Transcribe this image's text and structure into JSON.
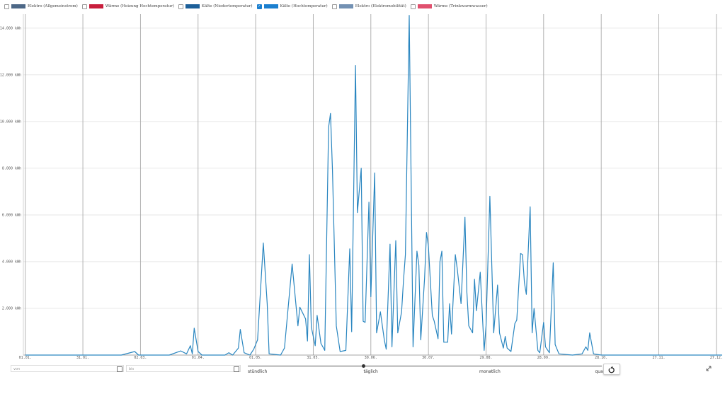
{
  "legend": [
    {
      "label": "Elektro (Allgemeinstrom)",
      "color": "#4d6887",
      "checked": false
    },
    {
      "label": "Wärme (Heizung Hochtemperatur)",
      "color": "#c81e3c",
      "checked": false
    },
    {
      "label": "Kälte (Niedertemperatur)",
      "color": "#1c5f99",
      "checked": false
    },
    {
      "label": "Kälte (Hochtemperatur)",
      "color": "#1b7fcf",
      "checked": true
    },
    {
      "label": "Elektro (Elektromobilität)",
      "color": "#7391b3",
      "checked": false
    },
    {
      "label": "Wärme (Trinkwarmwasser)",
      "color": "#e0506e",
      "checked": false
    }
  ],
  "chart_data": {
    "type": "line",
    "color": "#2a86c0",
    "grid": true,
    "xlim": [
      -1,
      363
    ],
    "ylim": [
      0,
      14600
    ],
    "xticks": [
      {
        "value": 0,
        "label": "01.01."
      },
      {
        "value": 30,
        "label": "31.01."
      },
      {
        "value": 60,
        "label": "02.03."
      },
      {
        "value": 90,
        "label": "01.04."
      },
      {
        "value": 120,
        "label": "01.05."
      },
      {
        "value": 150,
        "label": "31.05."
      },
      {
        "value": 180,
        "label": "30.06."
      },
      {
        "value": 210,
        "label": "30.07."
      },
      {
        "value": 240,
        "label": "29.08."
      },
      {
        "value": 270,
        "label": "28.09."
      },
      {
        "value": 300,
        "label": "28.10."
      },
      {
        "value": 330,
        "label": "27.11."
      },
      {
        "value": 360,
        "label": "27.12."
      }
    ],
    "yticks": [
      {
        "value": 2000,
        "label": "2.000 kWh"
      },
      {
        "value": 4000,
        "label": "4.000 kWh"
      },
      {
        "value": 6000,
        "label": "6.000 kWh"
      },
      {
        "value": 8000,
        "label": "8.000 kWh"
      },
      {
        "value": 10000,
        "label": "10.000 kWh"
      },
      {
        "value": 12000,
        "label": "12.000 kWh"
      },
      {
        "value": 14000,
        "label": "14.000 kWh"
      }
    ],
    "x": [
      0,
      20,
      50,
      57,
      59,
      75,
      81,
      84,
      86,
      87,
      88,
      90,
      92,
      104,
      106,
      108,
      111,
      112,
      114,
      117,
      119,
      121,
      124,
      126,
      127,
      133,
      135,
      139,
      142,
      143,
      146,
      147,
      148,
      149,
      151,
      152,
      154,
      156,
      158,
      159,
      160,
      162,
      164,
      167,
      169,
      170,
      172,
      173,
      175,
      176,
      177,
      179,
      180,
      182,
      183,
      185,
      187,
      188,
      190,
      191,
      193,
      194,
      196,
      197,
      198,
      200,
      202,
      204,
      205,
      206,
      208,
      209,
      210,
      212,
      213,
      215,
      216,
      217,
      218,
      220,
      221,
      222,
      224,
      225,
      227,
      229,
      230,
      231,
      233,
      234,
      235,
      237,
      239,
      240,
      242,
      244,
      246,
      247,
      249,
      250,
      251,
      253,
      255,
      256,
      258,
      259,
      260,
      261,
      263,
      264,
      265,
      267,
      268,
      270,
      271,
      273,
      275,
      276,
      278,
      285,
      290,
      292,
      293,
      294,
      296,
      300,
      363
    ],
    "values": [
      0,
      0,
      0,
      150,
      0,
      0,
      180,
      50,
      400,
      50,
      1150,
      150,
      0,
      0,
      100,
      0,
      300,
      1100,
      100,
      0,
      250,
      650,
      4800,
      2200,
      50,
      0,
      300,
      3900,
      1250,
      2050,
      1550,
      600,
      4300,
      1200,
      400,
      1700,
      500,
      200,
      9750,
      10350,
      7900,
      1250,
      150,
      200,
      4550,
      1000,
      12400,
      6100,
      8000,
      1450,
      1400,
      6550,
      2500,
      7800,
      950,
      1850,
      650,
      250,
      4750,
      350,
      4900,
      950,
      1850,
      3200,
      4300,
      14550,
      350,
      4450,
      3850,
      650,
      3300,
      5250,
      4650,
      1700,
      1450,
      700,
      4000,
      4450,
      550,
      550,
      2200,
      900,
      4300,
      3700,
      2200,
      5900,
      2700,
      1250,
      950,
      3250,
      1900,
      3550,
      200,
      1250,
      6800,
      950,
      3000,
      950,
      300,
      800,
      300,
      150,
      1350,
      1500,
      4350,
      4300,
      3100,
      2600,
      6350,
      950,
      2000,
      200,
      100,
      1400,
      350,
      100,
      3950,
      450,
      50,
      0,
      50,
      350,
      200,
      950,
      50,
      0,
      0
    ]
  },
  "controls": {
    "from_placeholder": "von",
    "to_placeholder": "bis",
    "resolution": {
      "options": [
        "stündlich",
        "täglich",
        "monatlich",
        "quar"
      ],
      "selected": 1
    }
  }
}
